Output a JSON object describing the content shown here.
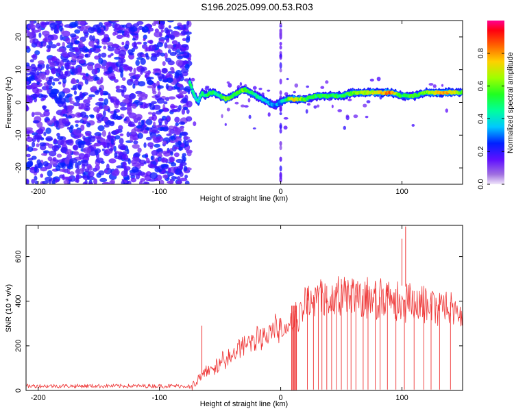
{
  "figure_title": "S196.2025.099.00.53.R03",
  "chart_data": [
    {
      "type": "heatmap",
      "xlabel": "Height of straight line (km)",
      "ylabel": "Frequency (Hz)",
      "xlim": [
        -210,
        150
      ],
      "ylim": [
        -25,
        25
      ],
      "xticks": [
        -200,
        -100,
        0,
        100
      ],
      "xtick_labels": [
        "-200",
        "-100",
        "0",
        "100"
      ],
      "yticks": [
        -20,
        -10,
        0,
        10,
        20
      ],
      "ytick_labels": [
        "-20",
        "-10",
        "0",
        "10",
        "20"
      ],
      "colorbar": {
        "label": "Normalized spectral amplitude",
        "range": [
          0,
          1
        ],
        "ticks": [
          0.0,
          0.2,
          0.4,
          0.6,
          0.8
        ],
        "tick_labels": [
          "0.0",
          "0.2",
          "0.4",
          "0.6",
          "0.8"
        ]
      },
      "noise_region_km": [
        -210,
        -75
      ],
      "signal_trace": {
        "x": [
          -75,
          -72,
          -68,
          -65,
          -62,
          -58,
          -55,
          -50,
          -45,
          -40,
          -35,
          -30,
          -25,
          -20,
          -15,
          -10,
          -5,
          0,
          5,
          10,
          20,
          30,
          40,
          50,
          60,
          70,
          80,
          90,
          100,
          110,
          120,
          130,
          140,
          150
        ],
        "freq": [
          6,
          3,
          0,
          3,
          2,
          3,
          3,
          2,
          1,
          2,
          3,
          4,
          3,
          2,
          1,
          0,
          -1,
          0,
          1,
          1,
          1,
          2,
          2,
          2,
          3,
          3,
          3,
          3,
          2,
          2,
          3,
          3,
          3,
          3
        ],
        "amplitude": [
          0.5,
          0.45,
          0.4,
          0.5,
          0.45,
          0.55,
          0.5,
          0.45,
          0.6,
          0.5,
          0.55,
          0.6,
          0.5,
          0.45,
          0.4,
          0.35,
          0.3,
          0.35,
          0.5,
          0.75,
          0.55,
          0.5,
          0.55,
          0.5,
          0.6,
          0.65,
          0.7,
          0.85,
          0.5,
          0.55,
          0.6,
          0.8,
          0.75,
          0.6
        ]
      }
    },
    {
      "type": "line",
      "xlabel": "Height of straight line (km)",
      "ylabel": "SNR (10 * v/v)",
      "xlim": [
        -210,
        150
      ],
      "ylim": [
        0,
        740
      ],
      "xticks": [
        -200,
        -100,
        0,
        100
      ],
      "xtick_labels": [
        "-200",
        "-100",
        "0",
        "100"
      ],
      "yticks": [
        0,
        200,
        400,
        600
      ],
      "ytick_labels": [
        "0",
        "200",
        "400",
        "600"
      ],
      "color": "#ee3333",
      "envelope": {
        "x": [
          -210,
          -75,
          -70,
          -60,
          -50,
          -40,
          -30,
          -20,
          -10,
          0,
          10,
          20,
          30,
          40,
          50,
          60,
          70,
          80,
          90,
          100,
          110,
          120,
          130,
          140,
          150
        ],
        "y": [
          20,
          20,
          45,
          100,
          140,
          180,
          230,
          270,
          300,
          340,
          360,
          450,
          480,
          500,
          505,
          500,
          495,
          490,
          480,
          470,
          455,
          450,
          440,
          425,
          410
        ]
      },
      "spikes": [
        {
          "x": 103,
          "y": 735
        },
        {
          "x": 100,
          "y": 680
        },
        {
          "x": -65,
          "y": 290
        }
      ],
      "dropouts_x": [
        10,
        12,
        13,
        22,
        27,
        31,
        34,
        38,
        42,
        46,
        50,
        55,
        58,
        62,
        68,
        72,
        78,
        82,
        88,
        95,
        102,
        110,
        118,
        124,
        131,
        140
      ]
    }
  ]
}
